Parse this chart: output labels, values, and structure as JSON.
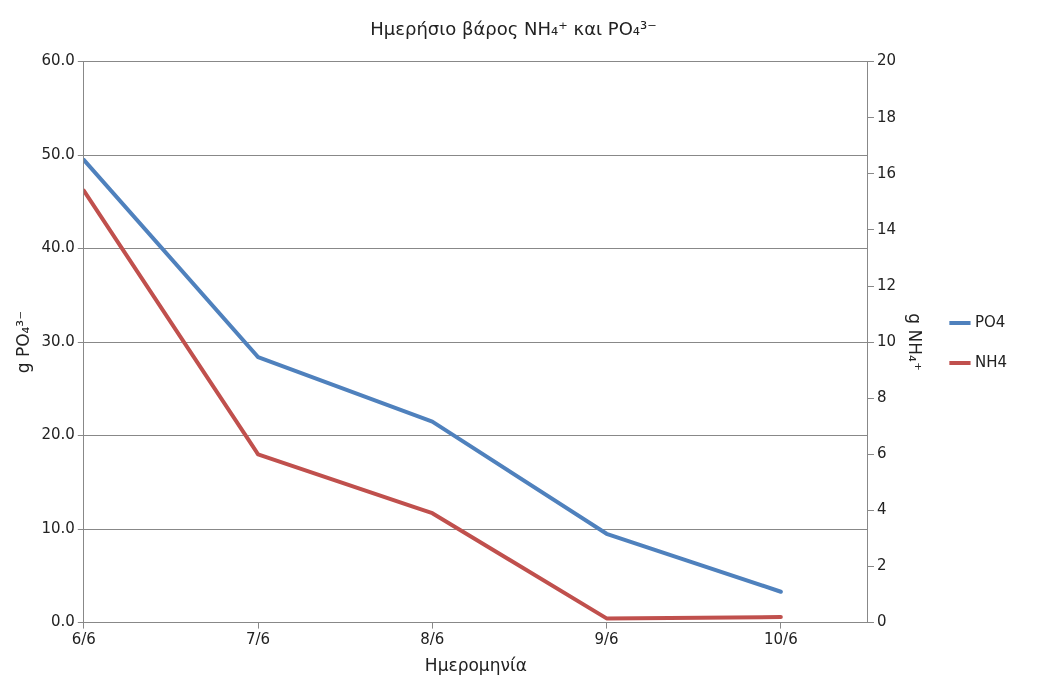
{
  "chart_data": {
    "type": "line",
    "title": "Ημερήσιο βάρος NH₄⁺ και PO₄³⁻",
    "xlabel": "Ημερομηνία",
    "ylabel": "g PO₄³⁻",
    "y2label": "g NH₄⁺",
    "x": [
      "--06-06",
      "--06-07",
      "--06-08",
      "--06-09",
      "--06-10"
    ],
    "xlim": [
      "--06-06",
      "--06-10T12:00"
    ],
    "xticks": [
      {
        "value": "--06-06",
        "label": "6/6"
      },
      {
        "value": "--06-07",
        "label": "7/6"
      },
      {
        "value": "--06-08",
        "label": "8/6"
      },
      {
        "value": "--06-09",
        "label": "9/6"
      },
      {
        "value": "--06-10",
        "label": "10/6"
      }
    ],
    "series": [
      {
        "name": "PO4",
        "color": "#4f81bd",
        "values": [
          49.5,
          28.4,
          21.5,
          9.5,
          3.3
        ]
      },
      {
        "name": "NH4",
        "color": "#c0504d",
        "axis": "y2",
        "values": [
          15.4,
          6.0,
          3.9,
          0.15,
          0.2
        ]
      }
    ],
    "ylim": [
      0,
      60
    ],
    "yticks": [
      {
        "value": 0,
        "label": "0.0"
      },
      {
        "value": 10,
        "label": "10.0"
      },
      {
        "value": 20,
        "label": "20.0"
      },
      {
        "value": 30,
        "label": "30.0"
      },
      {
        "value": 40,
        "label": "40.0"
      },
      {
        "value": 50,
        "label": "50.0"
      },
      {
        "value": 60,
        "label": "60.0"
      }
    ],
    "y2lim": [
      0,
      20
    ],
    "y2ticks": [
      0,
      2,
      4,
      6,
      8,
      10,
      12,
      14,
      16,
      18,
      20
    ],
    "grid": "y",
    "legend": "right",
    "marker": "none",
    "line_style": "solid"
  }
}
